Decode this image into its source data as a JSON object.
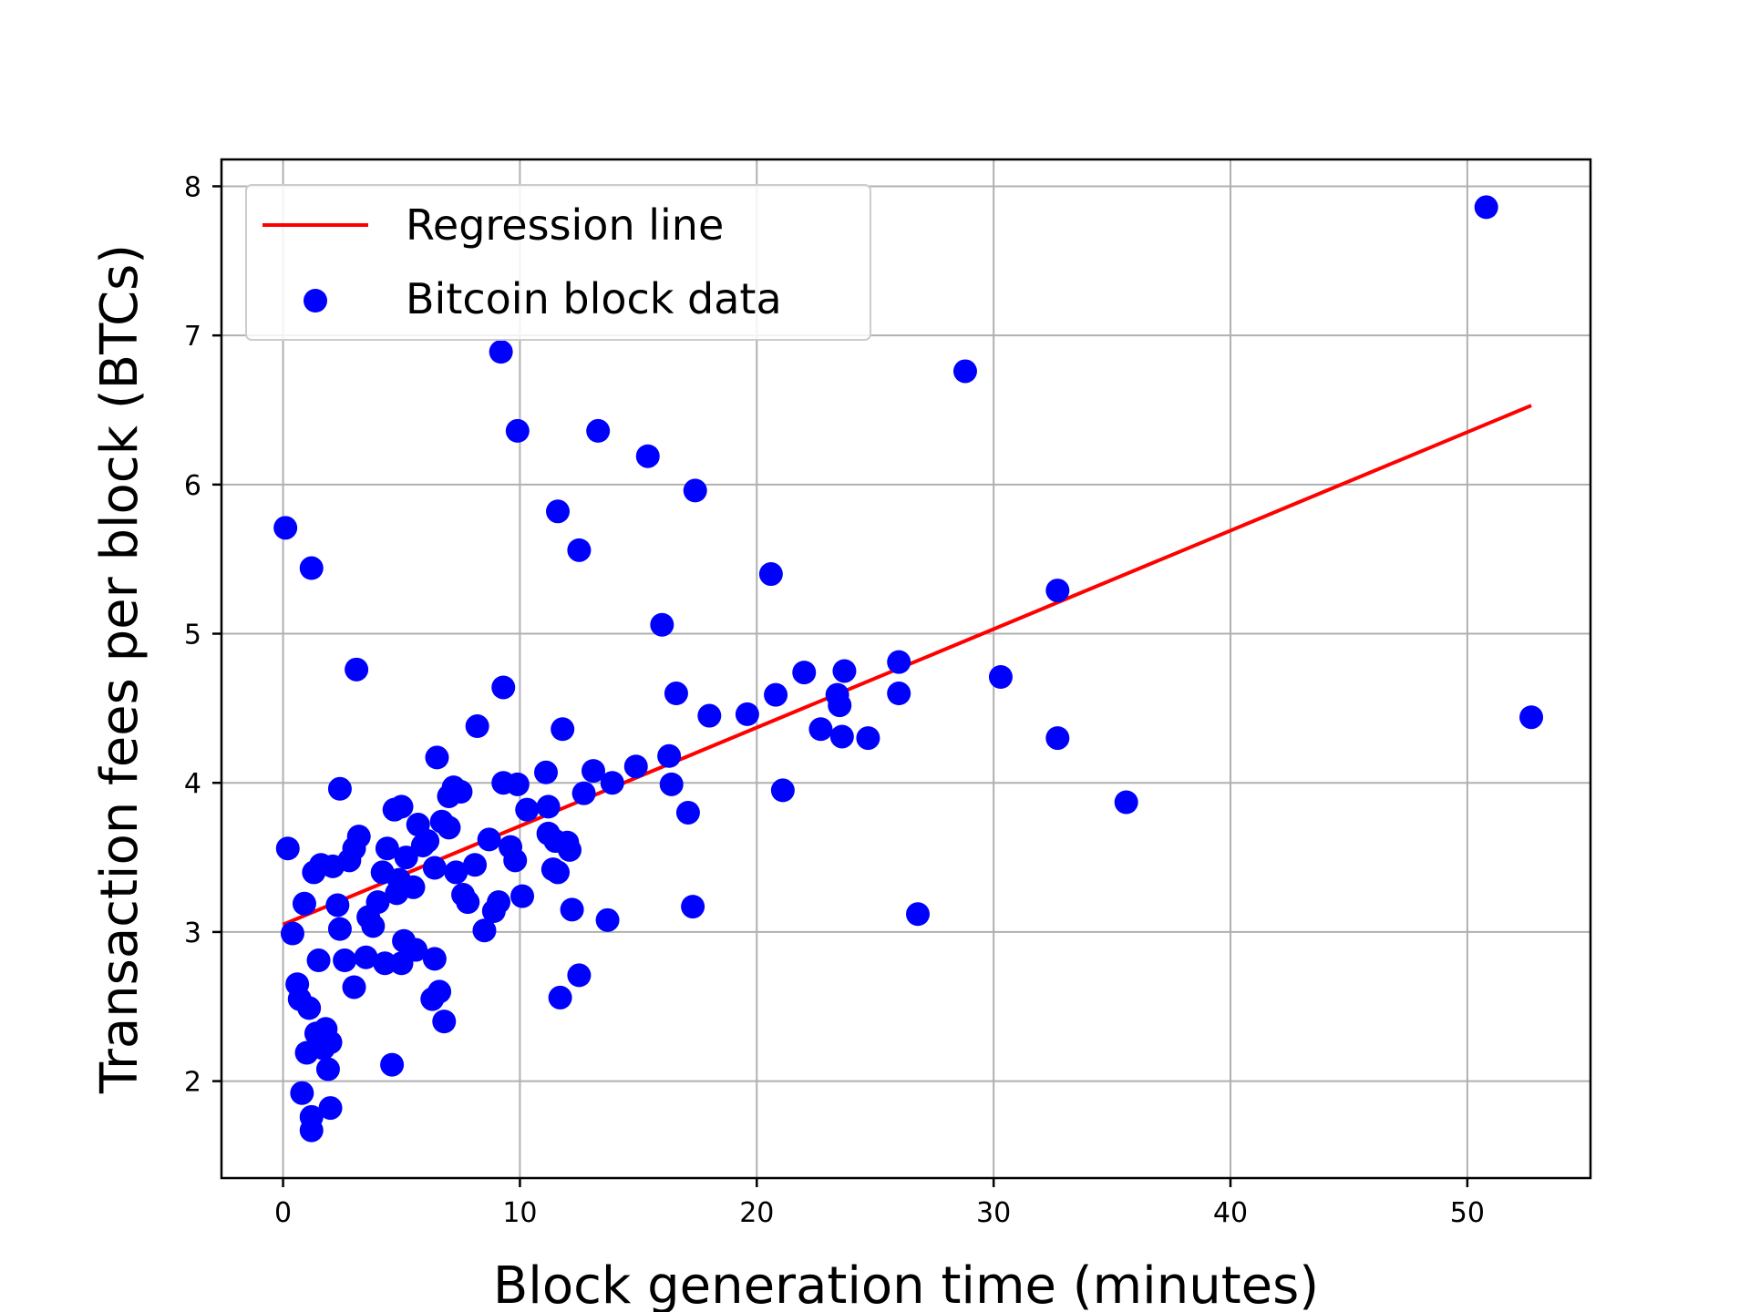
{
  "chart_data": {
    "type": "scatter",
    "title": "",
    "xlabel": "Block generation time (minutes)",
    "ylabel": "Transaction fees per block (BTCs)",
    "xlim": [
      -2.6,
      55.2
    ],
    "ylim": [
      1.35,
      8.18
    ],
    "xticks": [
      0,
      10,
      20,
      30,
      40,
      50
    ],
    "yticks": [
      2,
      3,
      4,
      5,
      6,
      7,
      8
    ],
    "grid": true,
    "legend_position": "top-left",
    "colors": {
      "scatter": "#0000ff",
      "line": "#ff0000"
    },
    "legend": [
      {
        "label": "Regression line",
        "kind": "line",
        "color": "#ff0000"
      },
      {
        "label": "Bitcoin block data",
        "kind": "marker",
        "color": "#0000ff"
      }
    ],
    "series": [
      {
        "name": "Regression line",
        "kind": "line",
        "x": [
          0,
          52.7
        ],
        "y": [
          3.05,
          6.53
        ]
      },
      {
        "name": "Bitcoin block data",
        "kind": "scatter",
        "points": [
          [
            0.1,
            5.71
          ],
          [
            0.2,
            3.56
          ],
          [
            0.4,
            2.99
          ],
          [
            0.6,
            2.65
          ],
          [
            0.7,
            2.55
          ],
          [
            0.8,
            1.92
          ],
          [
            0.9,
            3.19
          ],
          [
            1.0,
            2.19
          ],
          [
            1.1,
            2.49
          ],
          [
            1.2,
            1.76
          ],
          [
            1.2,
            1.67
          ],
          [
            1.3,
            3.4
          ],
          [
            1.2,
            5.44
          ],
          [
            1.4,
            2.32
          ],
          [
            1.5,
            2.81
          ],
          [
            1.6,
            3.45
          ],
          [
            1.7,
            2.22
          ],
          [
            1.8,
            2.35
          ],
          [
            1.9,
            2.08
          ],
          [
            2.0,
            2.26
          ],
          [
            2.0,
            1.82
          ],
          [
            2.1,
            3.44
          ],
          [
            2.3,
            3.18
          ],
          [
            2.4,
            3.02
          ],
          [
            2.4,
            3.96
          ],
          [
            2.6,
            2.81
          ],
          [
            2.8,
            3.48
          ],
          [
            3.0,
            3.56
          ],
          [
            3.0,
            2.63
          ],
          [
            3.1,
            4.76
          ],
          [
            3.2,
            3.64
          ],
          [
            3.5,
            2.83
          ],
          [
            3.6,
            3.1
          ],
          [
            3.8,
            3.04
          ],
          [
            4.0,
            3.2
          ],
          [
            4.2,
            3.4
          ],
          [
            4.3,
            2.79
          ],
          [
            4.4,
            3.56
          ],
          [
            4.6,
            2.11
          ],
          [
            4.7,
            3.82
          ],
          [
            4.8,
            3.26
          ],
          [
            4.9,
            3.35
          ],
          [
            5.0,
            3.84
          ],
          [
            5.0,
            2.79
          ],
          [
            5.1,
            2.94
          ],
          [
            5.2,
            3.5
          ],
          [
            5.5,
            3.3
          ],
          [
            5.6,
            2.88
          ],
          [
            5.7,
            3.72
          ],
          [
            5.9,
            3.58
          ],
          [
            6.1,
            3.61
          ],
          [
            6.3,
            2.55
          ],
          [
            6.4,
            3.43
          ],
          [
            6.4,
            2.82
          ],
          [
            6.5,
            4.17
          ],
          [
            6.6,
            2.6
          ],
          [
            6.7,
            3.74
          ],
          [
            6.8,
            2.4
          ],
          [
            7.0,
            3.7
          ],
          [
            7.0,
            3.91
          ],
          [
            7.2,
            3.97
          ],
          [
            7.3,
            3.4
          ],
          [
            7.5,
            3.94
          ],
          [
            7.6,
            3.25
          ],
          [
            7.8,
            3.2
          ],
          [
            8.1,
            3.45
          ],
          [
            8.2,
            4.38
          ],
          [
            8.5,
            3.01
          ],
          [
            8.7,
            3.62
          ],
          [
            8.9,
            3.14
          ],
          [
            9.1,
            3.2
          ],
          [
            9.2,
            6.89
          ],
          [
            9.3,
            4.64
          ],
          [
            9.3,
            4.0
          ],
          [
            9.6,
            3.57
          ],
          [
            9.8,
            3.48
          ],
          [
            9.9,
            3.99
          ],
          [
            9.9,
            6.36
          ],
          [
            10.1,
            3.24
          ],
          [
            10.3,
            3.82
          ],
          [
            11.1,
            4.07
          ],
          [
            11.2,
            3.66
          ],
          [
            11.2,
            3.84
          ],
          [
            11.4,
            3.42
          ],
          [
            11.5,
            3.61
          ],
          [
            11.6,
            5.82
          ],
          [
            11.6,
            3.4
          ],
          [
            11.7,
            2.56
          ],
          [
            11.8,
            4.36
          ],
          [
            12.0,
            3.6
          ],
          [
            12.1,
            3.55
          ],
          [
            12.2,
            3.15
          ],
          [
            12.5,
            5.56
          ],
          [
            12.5,
            2.71
          ],
          [
            12.7,
            3.93
          ],
          [
            13.1,
            4.08
          ],
          [
            13.3,
            6.36
          ],
          [
            13.7,
            3.08
          ],
          [
            13.9,
            4.0
          ],
          [
            14.9,
            4.11
          ],
          [
            15.4,
            6.19
          ],
          [
            16.0,
            5.06
          ],
          [
            16.3,
            4.18
          ],
          [
            16.4,
            3.99
          ],
          [
            16.6,
            4.6
          ],
          [
            17.1,
            3.8
          ],
          [
            17.3,
            3.17
          ],
          [
            17.4,
            5.96
          ],
          [
            18.0,
            4.45
          ],
          [
            19.6,
            4.46
          ],
          [
            20.6,
            5.4
          ],
          [
            20.8,
            4.59
          ],
          [
            21.1,
            3.95
          ],
          [
            22.0,
            4.74
          ],
          [
            22.7,
            4.36
          ],
          [
            23.4,
            4.59
          ],
          [
            23.5,
            4.52
          ],
          [
            23.6,
            4.31
          ],
          [
            23.7,
            4.75
          ],
          [
            24.7,
            4.3
          ],
          [
            26.0,
            4.81
          ],
          [
            26.0,
            4.6
          ],
          [
            26.8,
            3.12
          ],
          [
            28.8,
            6.76
          ],
          [
            30.3,
            4.71
          ],
          [
            32.7,
            5.29
          ],
          [
            32.7,
            4.3
          ],
          [
            35.6,
            3.87
          ],
          [
            50.8,
            7.86
          ],
          [
            52.7,
            4.44
          ]
        ]
      }
    ]
  }
}
